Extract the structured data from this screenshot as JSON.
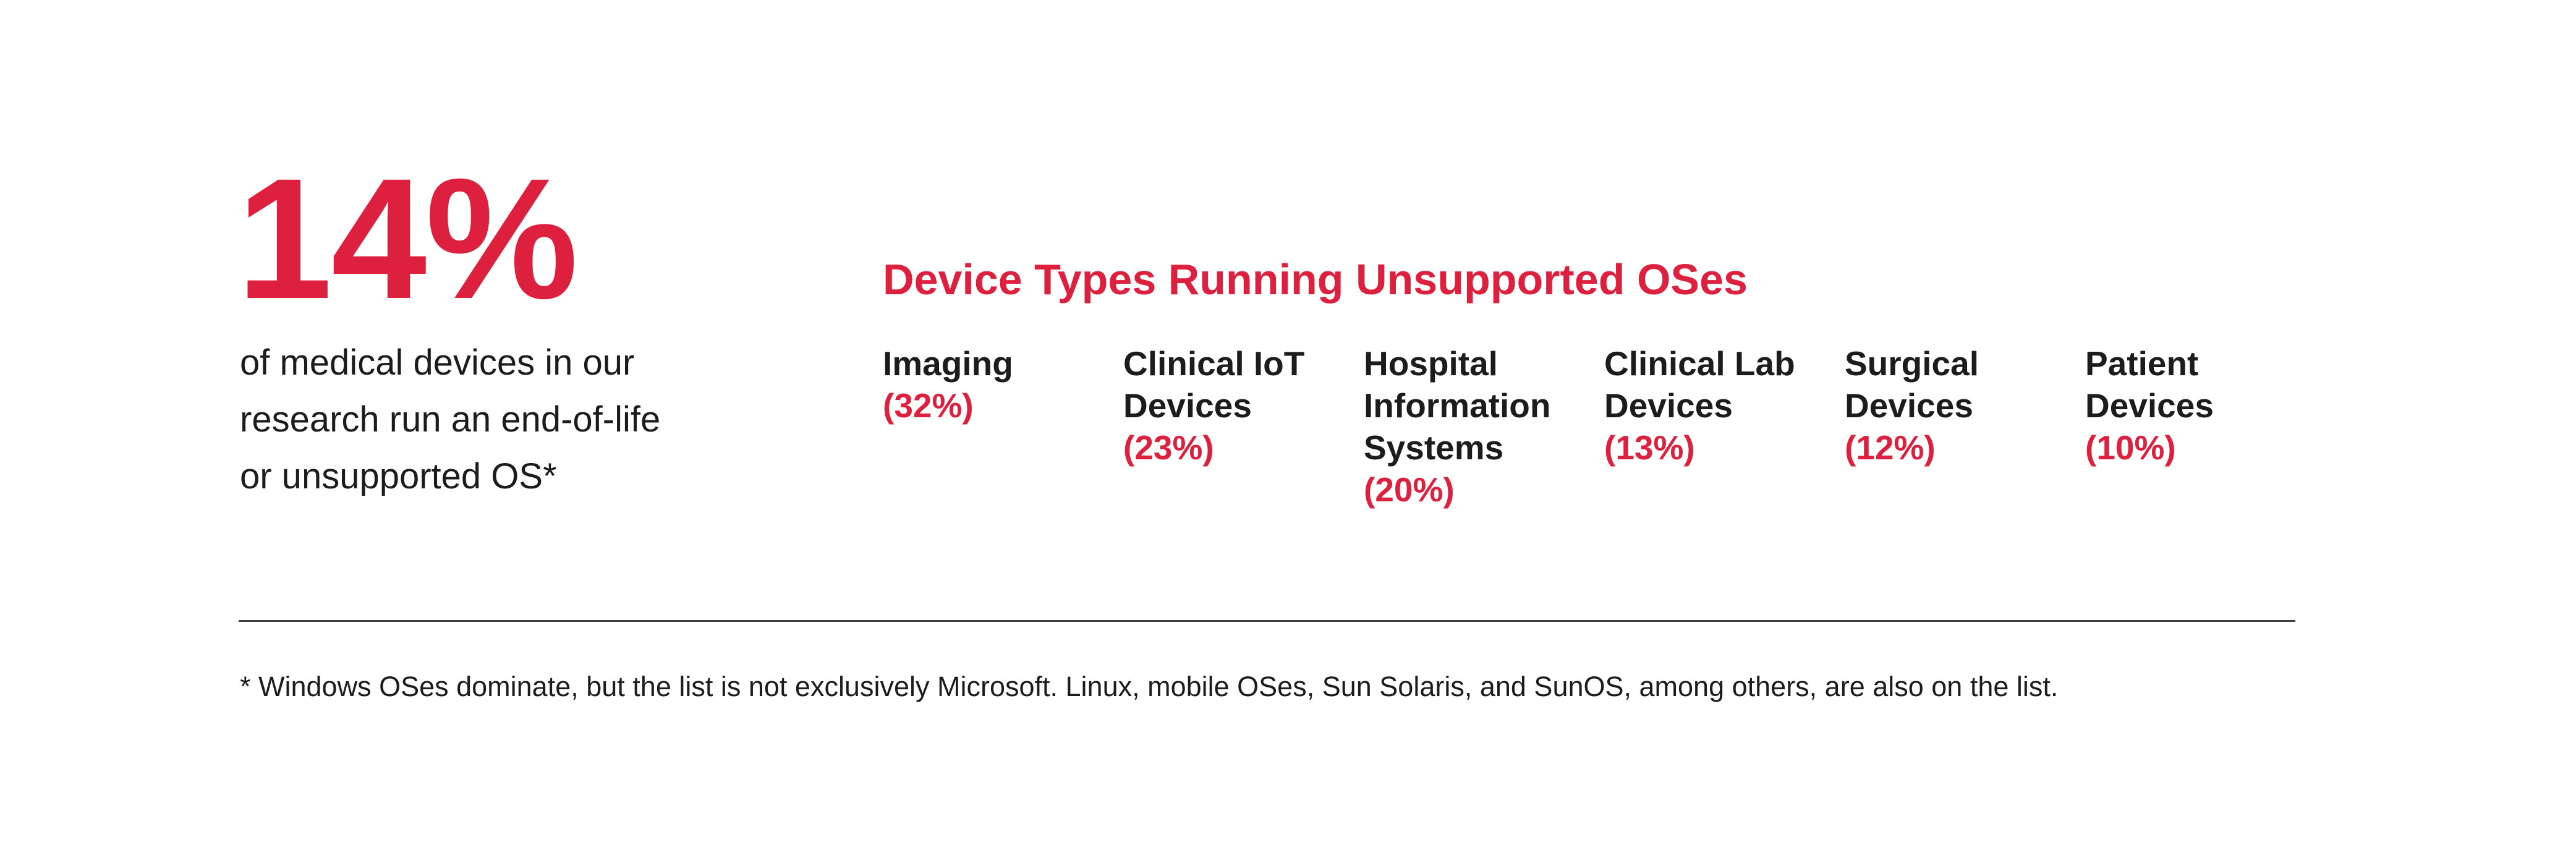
{
  "colors": {
    "accent_red": "#DC203E",
    "text_black": "#1C1C1C",
    "divider_gray": "#3F3F3F",
    "background": "#FFFFFF"
  },
  "stat": {
    "value": "14%",
    "description": "of medical devices in our\nresearch run an end-of-life\nor unsupported OS*"
  },
  "chart": {
    "title": "Device Types Running Unsupported OSes",
    "columns": [
      {
        "label": "Imaging",
        "percent": "(32%)"
      },
      {
        "label": "Clinical IoT\nDevices",
        "percent": "(23%)"
      },
      {
        "label": "Hospital\nInformation\nSystems",
        "percent": "(20%)"
      },
      {
        "label": "Clinical Lab\nDevices",
        "percent": "(13%)"
      },
      {
        "label": "Surgical\nDevices",
        "percent": "(12%)"
      },
      {
        "label": "Patient\nDevices",
        "percent": "(10%)"
      }
    ]
  },
  "footnote": "* Windows OSes dominate, but the list is not exclusively Microsoft. Linux, mobile OSes, Sun Solaris, and SunOS, among others, are also on the list.",
  "chart_data": {
    "type": "table",
    "title": "Device Types Running Unsupported OSes",
    "categories": [
      "Imaging",
      "Clinical IoT Devices",
      "Hospital Information Systems",
      "Clinical Lab Devices",
      "Surgical Devices",
      "Patient Devices"
    ],
    "values": [
      32,
      23,
      20,
      13,
      12,
      10
    ],
    "unit": "%",
    "legend": "none",
    "callout": {
      "value": 14,
      "unit": "%",
      "text": "of medical devices in our research run an end-of-life or unsupported OS*"
    }
  }
}
